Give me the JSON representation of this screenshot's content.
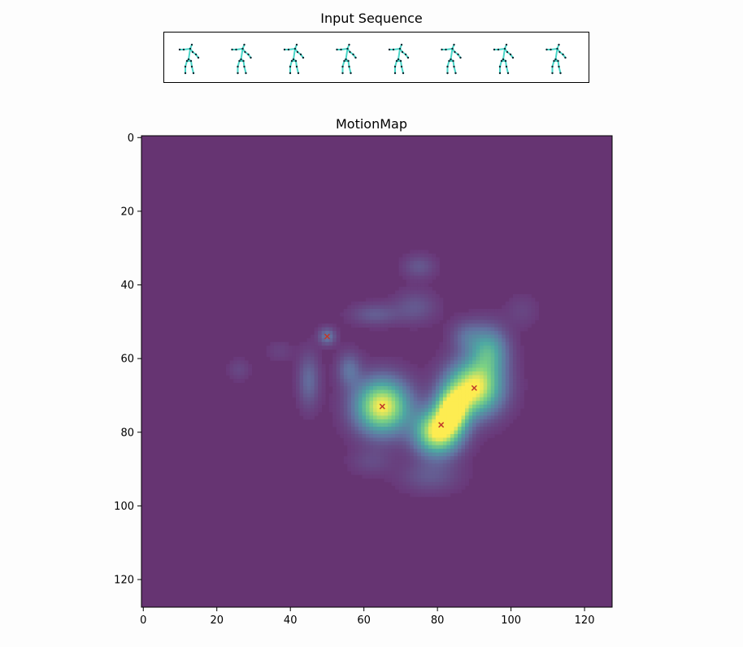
{
  "input_sequence": {
    "title": "Input Sequence",
    "frame_count": 8,
    "colors": {
      "bone": "#48d6c8",
      "joint": "#0d2a33"
    }
  },
  "chart_data": {
    "type": "heatmap",
    "title": "MotionMap",
    "xlabel": "",
    "ylabel": "",
    "grid_size": 128,
    "xlim": [
      -0.5,
      127.5
    ],
    "ylim": [
      127.5,
      -0.5
    ],
    "xticks": [
      0,
      20,
      40,
      60,
      80,
      100,
      120
    ],
    "yticks": [
      0,
      20,
      40,
      60,
      80,
      100,
      120
    ],
    "colormap": "viridis",
    "background_value": 0,
    "peaks": [
      {
        "x": 65,
        "y": 73,
        "marker": "x"
      },
      {
        "x": 81,
        "y": 78,
        "marker": "x"
      },
      {
        "x": 90,
        "y": 68,
        "marker": "x"
      },
      {
        "x": 50,
        "y": 54,
        "marker": "x"
      }
    ],
    "blobs": [
      {
        "x": 65,
        "y": 73,
        "sx": 5.0,
        "sy": 5.0,
        "value": 1.0
      },
      {
        "x": 90,
        "y": 68,
        "sx": 5.0,
        "sy": 5.0,
        "value": 1.0
      },
      {
        "x": 80,
        "y": 80,
        "sx": 4.2,
        "sy": 4.2,
        "value": 1.0
      },
      {
        "x": 84,
        "y": 74,
        "sx": 3.0,
        "sy": 4.0,
        "value": 0.92
      },
      {
        "x": 94,
        "y": 58,
        "sx": 3.5,
        "sy": 4.5,
        "value": 0.5
      },
      {
        "x": 88,
        "y": 54,
        "sx": 3.0,
        "sy": 3.0,
        "value": 0.2
      },
      {
        "x": 50,
        "y": 54,
        "sx": 1.6,
        "sy": 1.6,
        "value": 0.28
      },
      {
        "x": 45,
        "y": 66,
        "sx": 2.0,
        "sy": 5.0,
        "value": 0.22
      },
      {
        "x": 56,
        "y": 63,
        "sx": 2.2,
        "sy": 3.2,
        "value": 0.24
      },
      {
        "x": 63,
        "y": 48,
        "sx": 4.5,
        "sy": 2.0,
        "value": 0.16
      },
      {
        "x": 74,
        "y": 46,
        "sx": 4.0,
        "sy": 3.0,
        "value": 0.14
      },
      {
        "x": 75,
        "y": 35,
        "sx": 3.0,
        "sy": 2.2,
        "value": 0.14
      },
      {
        "x": 78,
        "y": 92,
        "sx": 5.5,
        "sy": 3.0,
        "value": 0.14
      },
      {
        "x": 62,
        "y": 88,
        "sx": 4.0,
        "sy": 2.5,
        "value": 0.09
      },
      {
        "x": 26,
        "y": 63,
        "sx": 2.0,
        "sy": 2.0,
        "value": 0.08
      },
      {
        "x": 37,
        "y": 58,
        "sx": 2.5,
        "sy": 2.0,
        "value": 0.06
      },
      {
        "x": 103,
        "y": 47,
        "sx": 3.0,
        "sy": 3.0,
        "value": 0.07
      }
    ],
    "colors": {
      "background": "#663472",
      "marker": "#c0392b"
    }
  }
}
